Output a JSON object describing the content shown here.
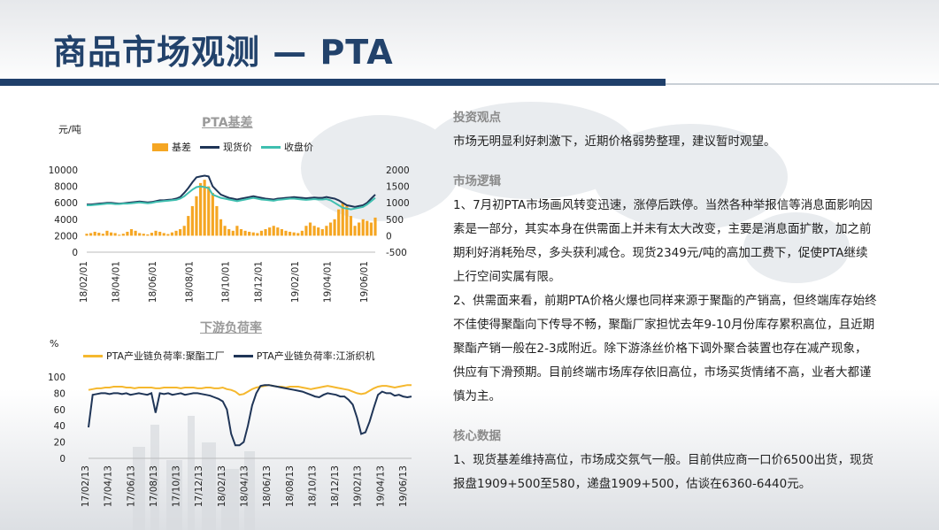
{
  "page": {
    "title": "商品市场观测 — PTA"
  },
  "colors": {
    "title_blue": "#22426b",
    "basis_orange": "#f5a623",
    "spot_navy": "#1f3557",
    "close_teal": "#3fbfb0",
    "load_yellow": "#f5b82e",
    "load_navy": "#1f3557"
  },
  "chart_data": [
    {
      "type": "line",
      "title": "PTA基差",
      "unit_left": "元/吨",
      "legend_position": "top",
      "x_tick_labels": [
        "18/02/01",
        "18/04/01",
        "18/06/01",
        "18/08/01",
        "18/10/01",
        "18/12/01",
        "19/02/01",
        "19/04/01",
        "19/06/01"
      ],
      "x_tick_index": [
        0,
        8,
        17,
        26,
        35,
        43,
        52,
        60,
        69
      ],
      "y_left_ticks": [
        0,
        2000,
        4000,
        6000,
        8000,
        10000
      ],
      "y_left_lim": [
        0,
        10000
      ],
      "y_right_ticks": [
        -500,
        0,
        500,
        1000,
        1500,
        2000
      ],
      "y_right_lim": [
        -500,
        2000
      ],
      "series": [
        {
          "name": "基差",
          "axis": "right",
          "kind": "bar",
          "values": [
            60,
            80,
            120,
            90,
            60,
            150,
            100,
            80,
            30,
            60,
            120,
            200,
            150,
            80,
            60,
            40,
            90,
            150,
            120,
            80,
            50,
            100,
            150,
            200,
            300,
            600,
            900,
            1200,
            1600,
            1700,
            1500,
            1300,
            900,
            500,
            300,
            200,
            150,
            300,
            200,
            150,
            120,
            100,
            80,
            150,
            200,
            250,
            300,
            250,
            200,
            150,
            120,
            100,
            80,
            150,
            300,
            400,
            300,
            250,
            200,
            300,
            400,
            500,
            800,
            1000,
            900,
            600,
            300,
            400,
            500,
            450,
            400,
            550
          ]
        },
        {
          "name": "现货价",
          "axis": "left",
          "kind": "line",
          "values": [
            5800,
            5800,
            5850,
            5900,
            5950,
            6000,
            6000,
            5950,
            5900,
            5950,
            6000,
            6050,
            6100,
            6150,
            6100,
            6050,
            6100,
            6200,
            6300,
            6300,
            6350,
            6400,
            6500,
            6700,
            7200,
            7800,
            8500,
            9100,
            9200,
            9300,
            9200,
            8000,
            7500,
            7000,
            6800,
            6600,
            6500,
            6400,
            6500,
            6600,
            6700,
            6800,
            6700,
            6600,
            6500,
            6450,
            6400,
            6500,
            6550,
            6600,
            6650,
            6700,
            6650,
            6600,
            6550,
            6600,
            6650,
            6600,
            6600,
            6700,
            6600,
            6500,
            6300,
            6000,
            5700,
            5600,
            5500,
            5600,
            5700,
            6000,
            6500,
            7000
          ]
        },
        {
          "name": "收盘价",
          "axis": "left",
          "kind": "line",
          "values": [
            5700,
            5700,
            5750,
            5800,
            5850,
            5900,
            5900,
            5850,
            5850,
            5900,
            5900,
            5950,
            6000,
            6050,
            6000,
            5950,
            6000,
            6100,
            6150,
            6200,
            6250,
            6300,
            6350,
            6500,
            6800,
            7200,
            7600,
            7900,
            8000,
            7900,
            7800,
            7000,
            6800,
            6600,
            6500,
            6400,
            6300,
            6200,
            6300,
            6400,
            6500,
            6600,
            6500,
            6400,
            6350,
            6300,
            6250,
            6350,
            6400,
            6450,
            6500,
            6500,
            6450,
            6400,
            6350,
            6400,
            6450,
            6400,
            6400,
            6450,
            6300,
            6000,
            5700,
            5400,
            5300,
            5200,
            5300,
            5400,
            5500,
            5800,
            6200,
            6600
          ]
        }
      ]
    },
    {
      "type": "line",
      "title": "下游负荷率",
      "unit_left": "%",
      "legend_position": "top",
      "x_tick_labels": [
        "17/02/13",
        "17/04/13",
        "17/06/13",
        "17/08/13",
        "17/10/13",
        "17/12/13",
        "18/02/13",
        "18/04/13",
        "18/06/13",
        "18/08/13",
        "18/10/13",
        "18/12/13",
        "19/02/13",
        "19/04/13",
        "19/06/13"
      ],
      "y_left_ticks": [
        0,
        10,
        20,
        30,
        40,
        50,
        60,
        70,
        80,
        90,
        100
      ],
      "y_left_lim": [
        0,
        100
      ],
      "series": [
        {
          "name": "PTA产业链负荷率:聚酯工厂",
          "kind": "line",
          "values": [
            84,
            85,
            86,
            86,
            87,
            87,
            88,
            88,
            88,
            87,
            87,
            86,
            87,
            87,
            87,
            87,
            86,
            86,
            87,
            87,
            87,
            87,
            86,
            87,
            87,
            87,
            86,
            86,
            87,
            87,
            86,
            86,
            87,
            85,
            84,
            82,
            78,
            79,
            82,
            85,
            87,
            88,
            89,
            90,
            89,
            88,
            88,
            87,
            88,
            88,
            88,
            87,
            86,
            85,
            86,
            87,
            88,
            89,
            88,
            87,
            86,
            85,
            84,
            82,
            80,
            79,
            80,
            83,
            86,
            88,
            89,
            89,
            88,
            87,
            88,
            89,
            90,
            90
          ]
        },
        {
          "name": "PTA产业链负荷率:江浙织机",
          "kind": "line",
          "values": [
            38,
            78,
            79,
            80,
            80,
            79,
            80,
            80,
            79,
            80,
            78,
            79,
            80,
            79,
            78,
            80,
            56,
            80,
            79,
            80,
            78,
            79,
            80,
            78,
            79,
            80,
            80,
            79,
            78,
            77,
            75,
            73,
            70,
            60,
            30,
            16,
            16,
            20,
            40,
            65,
            80,
            89,
            90,
            90,
            89,
            88,
            87,
            86,
            85,
            84,
            83,
            82,
            80,
            78,
            76,
            75,
            78,
            80,
            79,
            78,
            76,
            76,
            72,
            66,
            50,
            30,
            32,
            45,
            62,
            78,
            82,
            80,
            80,
            77,
            78,
            76,
            75,
            76
          ]
        }
      ]
    }
  ],
  "right": {
    "sec1_head": "投资观点",
    "sec1_text": "市场无明显利好刺激下，近期价格弱势整理，建议暂时观望。",
    "sec2_head": "市场逻辑",
    "sec2_p1": "1、7月初PTA市场画风转变迅速，涨停后跌停。当然各种举报信等消息面影响因素是一部分，其实本身在供需面上并未有太大改变，主要是消息面扩散，加之前期利好消耗殆尽，多头获利减仓。现货2349元/吨的高加工费下，促使PTA继续上行空间实属有限。",
    "sec2_p2": "2、供需面来看，前期PTA价格火爆也同样来源于聚酯的产销高，但终端库存始终不佳使得聚酯向下传导不畅，聚酯厂家担忧去年9-10月份库存累积高位，且近期聚酯产销一般在2-3成附近。除下游涤丝价格下调外聚合装置也存在减产现象，供应有下滑预期。目前终端市场库存依旧高位，市场买货情绪不高，业者大都谨慎为主。",
    "sec3_head": "核心数据",
    "sec3_p1": "1、现货基差维持高位，市场成交氛气一般。目前供应商一口价6500出货，现货报盘1909+500至580，递盘1909+500，估谈在6360-6440元。"
  }
}
